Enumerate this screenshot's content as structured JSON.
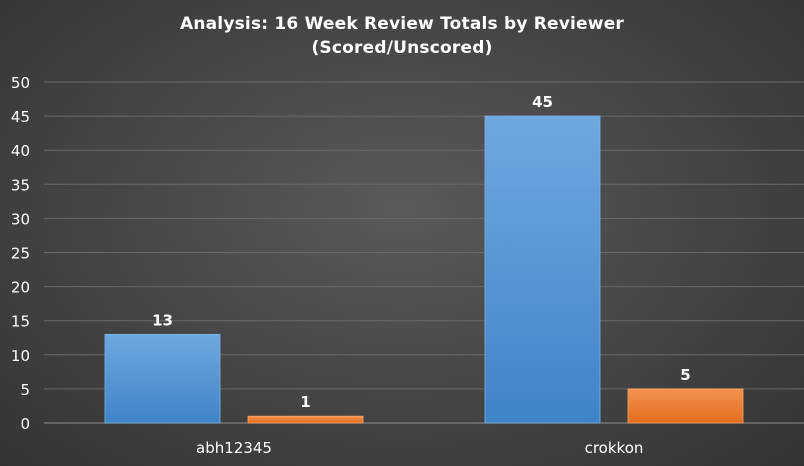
{
  "chart_data": {
    "type": "bar",
    "title": "Analysis:  16 Week Review Totals  by Reviewer",
    "subtitle": "(Scored/Unscored)",
    "xlabel": "",
    "ylabel": "",
    "categories": [
      "abh12345",
      "crokkon"
    ],
    "series": [
      {
        "values": [
          13,
          45
        ],
        "color": "#5b9bd5"
      },
      {
        "values": [
          1,
          5
        ],
        "color": "#ed7d31"
      }
    ],
    "data_labels": true,
    "ylim": [
      0,
      50
    ],
    "yticks": [
      0,
      5,
      10,
      15,
      20,
      25,
      30,
      35,
      40,
      45,
      50
    ],
    "grid": true,
    "legend": "none",
    "colors": {
      "text": "#ffffff",
      "grid": "#6a6a6a",
      "axis": "#8c8c8c"
    }
  }
}
